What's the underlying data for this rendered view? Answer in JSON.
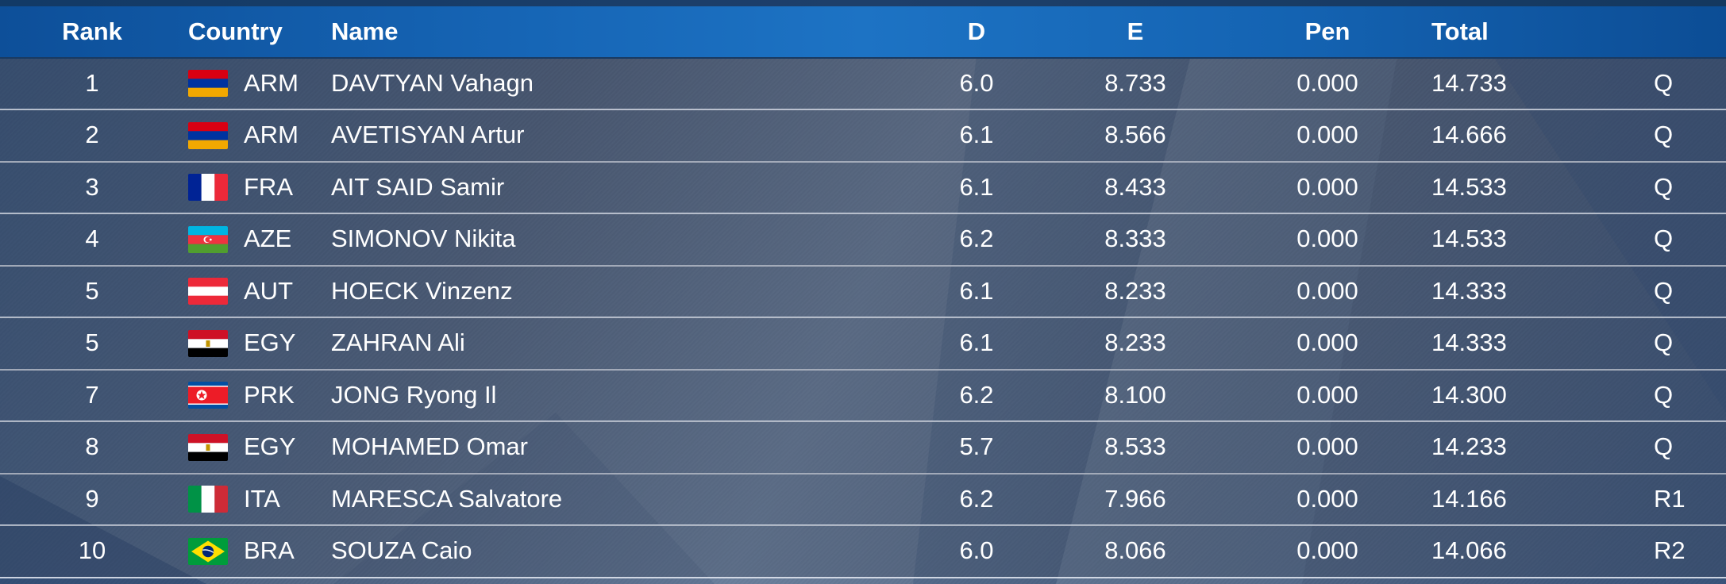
{
  "columns": {
    "rank": "Rank",
    "country": "Country",
    "name": "Name",
    "d": "D",
    "e": "E",
    "pen": "Pen",
    "total": "Total"
  },
  "rows": [
    {
      "rank": "1",
      "flag": "armenia-flag-icon",
      "code": "ARM",
      "name": "DAVTYAN Vahagn",
      "d": "6.0",
      "e": "8.733",
      "pen": "0.000",
      "total": "14.733",
      "qual": "Q"
    },
    {
      "rank": "2",
      "flag": "armenia-flag-icon",
      "code": "ARM",
      "name": "AVETISYAN Artur",
      "d": "6.1",
      "e": "8.566",
      "pen": "0.000",
      "total": "14.666",
      "qual": "Q"
    },
    {
      "rank": "3",
      "flag": "france-flag-icon",
      "code": "FRA",
      "name": "AIT SAID Samir",
      "d": "6.1",
      "e": "8.433",
      "pen": "0.000",
      "total": "14.533",
      "qual": "Q"
    },
    {
      "rank": "4",
      "flag": "azerbaijan-flag-icon",
      "code": "AZE",
      "name": "SIMONOV Nikita",
      "d": "6.2",
      "e": "8.333",
      "pen": "0.000",
      "total": "14.533",
      "qual": "Q"
    },
    {
      "rank": "5",
      "flag": "austria-flag-icon",
      "code": "AUT",
      "name": "HOECK Vinzenz",
      "d": "6.1",
      "e": "8.233",
      "pen": "0.000",
      "total": "14.333",
      "qual": "Q"
    },
    {
      "rank": "5",
      "flag": "egypt-flag-icon",
      "code": "EGY",
      "name": "ZAHRAN Ali",
      "d": "6.1",
      "e": "8.233",
      "pen": "0.000",
      "total": "14.333",
      "qual": "Q"
    },
    {
      "rank": "7",
      "flag": "north-korea-flag-icon",
      "code": "PRK",
      "name": "JONG Ryong Il",
      "d": "6.2",
      "e": "8.100",
      "pen": "0.000",
      "total": "14.300",
      "qual": "Q"
    },
    {
      "rank": "8",
      "flag": "egypt-flag-icon",
      "code": "EGY",
      "name": "MOHAMED Omar",
      "d": "5.7",
      "e": "8.533",
      "pen": "0.000",
      "total": "14.233",
      "qual": "Q"
    },
    {
      "rank": "9",
      "flag": "italy-flag-icon",
      "code": "ITA",
      "name": "MARESCA Salvatore",
      "d": "6.2",
      "e": "7.966",
      "pen": "0.000",
      "total": "14.166",
      "qual": "R1"
    },
    {
      "rank": "10",
      "flag": "brazil-flag-icon",
      "code": "BRA",
      "name": "SOUZA Caio",
      "d": "6.0",
      "e": "8.066",
      "pen": "0.000",
      "total": "14.066",
      "qual": "R2"
    }
  ],
  "colors": {
    "header_blue": "#1665b5",
    "row_divider": "#e6ebf5"
  }
}
